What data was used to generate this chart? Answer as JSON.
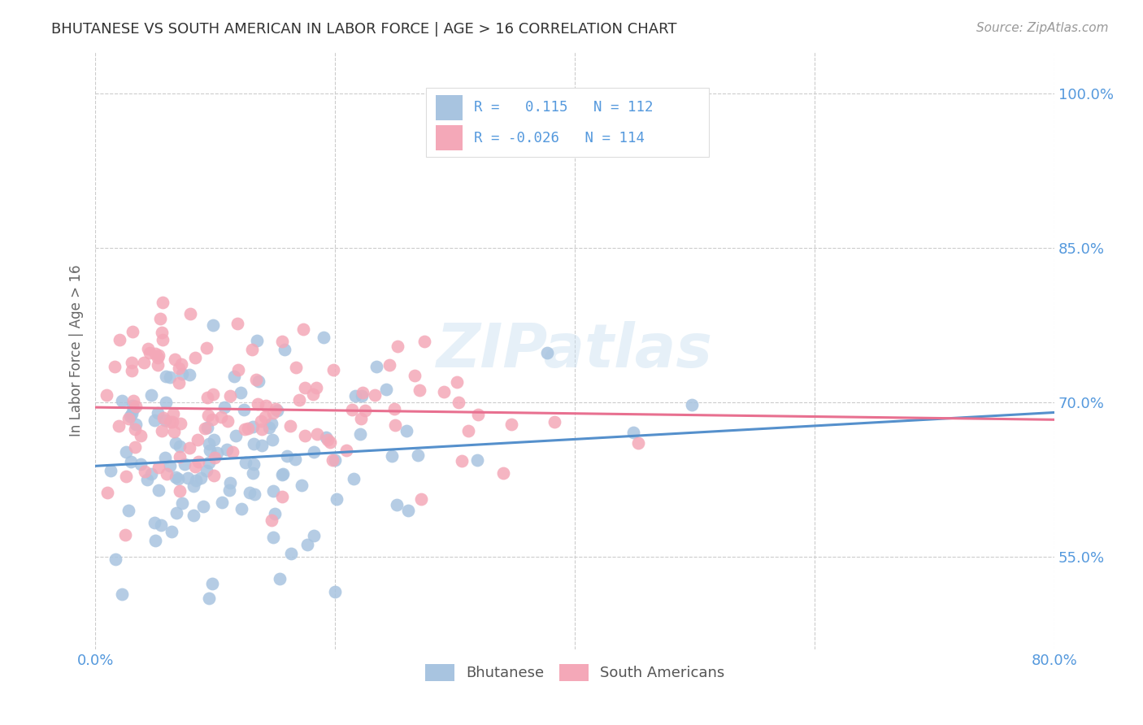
{
  "title": "BHUTANESE VS SOUTH AMERICAN IN LABOR FORCE | AGE > 16 CORRELATION CHART",
  "source": "Source: ZipAtlas.com",
  "ylabel": "In Labor Force | Age > 16",
  "xmin": 0.0,
  "xmax": 0.8,
  "ymin": 0.46,
  "ymax": 1.04,
  "ytick_vals": [
    0.55,
    0.7,
    0.85,
    1.0
  ],
  "ytick_labels": [
    "55.0%",
    "70.0%",
    "85.0%",
    "100.0%"
  ],
  "xtick_vals": [
    0.0,
    0.8
  ],
  "xtick_labels": [
    "0.0%",
    "80.0%"
  ],
  "blue_R": 0.115,
  "blue_N": 112,
  "pink_R": -0.026,
  "pink_N": 114,
  "blue_color": "#a8c4e0",
  "pink_color": "#f4a8b8",
  "blue_line_color": "#5590cc",
  "pink_line_color": "#e87090",
  "legend_label_blue": "Bhutanese",
  "legend_label_pink": "South Americans",
  "watermark": "ZIPatlas",
  "grid_color": "#cccccc",
  "axis_label_color": "#5599dd",
  "title_color": "#333333",
  "blue_seed": 42,
  "pink_seed": 99,
  "blue_intercept": 0.638,
  "blue_slope": 0.065,
  "pink_intercept": 0.695,
  "pink_slope": -0.015
}
